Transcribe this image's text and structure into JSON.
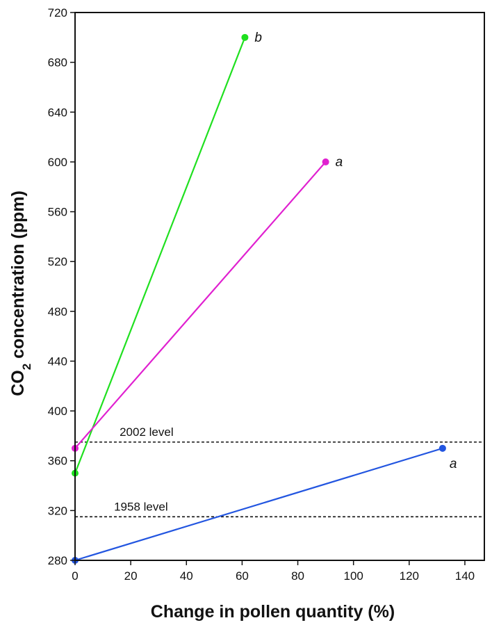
{
  "chart_data": {
    "type": "line",
    "xlabel": "Change in pollen quantity (%)",
    "ylabel_main": "CO",
    "ylabel_sub": "2",
    "ylabel_rest": " concentration (ppm)",
    "xlim": [
      0,
      147
    ],
    "ylim": [
      280,
      720
    ],
    "xticks": [
      0,
      20,
      40,
      60,
      80,
      100,
      120,
      140
    ],
    "yticks": [
      280,
      320,
      360,
      400,
      440,
      480,
      520,
      560,
      600,
      640,
      680,
      720
    ],
    "reference_lines": [
      {
        "label": "2002 level",
        "y": 375,
        "label_x": 16
      },
      {
        "label": "1958 level",
        "y": 315,
        "label_x": 14
      }
    ],
    "series": [
      {
        "color": "#1fe01f",
        "points": [
          [
            0,
            350
          ],
          [
            61,
            700
          ]
        ],
        "end_label": "b"
      },
      {
        "color": "#e020d0",
        "points": [
          [
            0,
            370
          ],
          [
            90,
            600
          ]
        ],
        "end_label": "a"
      },
      {
        "color": "#2255e0",
        "points": [
          [
            0,
            280
          ],
          [
            132,
            370
          ]
        ],
        "end_label": "a"
      }
    ]
  }
}
